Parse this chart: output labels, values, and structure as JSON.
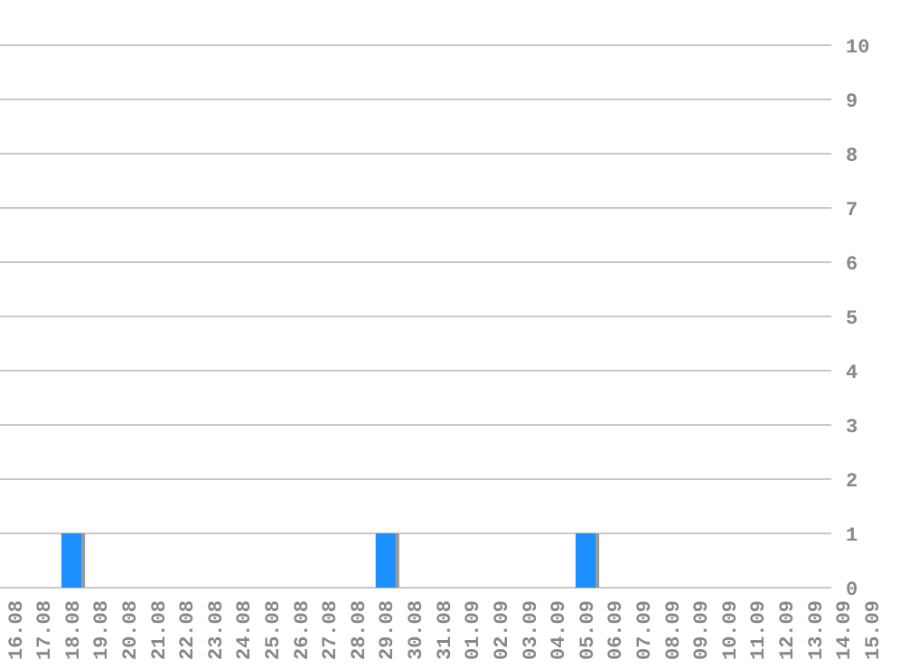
{
  "chart_data": {
    "type": "bar",
    "categories": [
      "16.08",
      "17.08",
      "18.08",
      "19.08",
      "20.08",
      "21.08",
      "22.08",
      "23.08",
      "24.08",
      "25.08",
      "26.08",
      "27.08",
      "28.08",
      "29.08",
      "30.08",
      "31.08",
      "01.09",
      "02.09",
      "03.09",
      "04.09",
      "05.09",
      "06.09",
      "07.09",
      "08.09",
      "09.09",
      "10.09",
      "11.09",
      "12.09",
      "13.09",
      "14.09",
      "15.09"
    ],
    "values": [
      0,
      0,
      1,
      0,
      0,
      0,
      0,
      0,
      0,
      0,
      0,
      0,
      0,
      1,
      0,
      0,
      0,
      0,
      0,
      0,
      1,
      0,
      0,
      0,
      0,
      0,
      0,
      0,
      0,
      0,
      0
    ],
    "color": "#1e90ff",
    "ylim": [
      0,
      10
    ],
    "yticks": [
      0,
      1,
      2,
      3,
      4,
      5,
      6,
      7,
      8,
      9,
      10
    ],
    "grid": "y"
  }
}
